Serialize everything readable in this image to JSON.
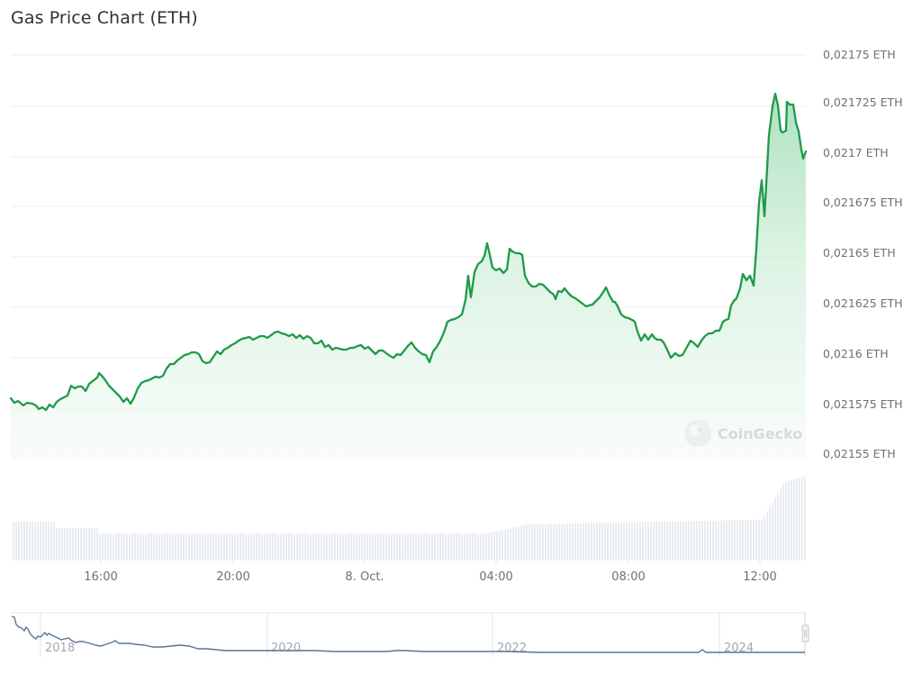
{
  "header": {
    "title": "Gas Price Chart (ETH)"
  },
  "watermark": {
    "text": "CoinGecko"
  },
  "colors": {
    "line": "#1e9a48",
    "fill_top": "#b9e6c8",
    "fill_bottom": "#f6fcf8",
    "grid": "#ecedef",
    "volume": "#e9edf2",
    "navigator_line": "#5c7591"
  },
  "chart_data": {
    "type": "line",
    "title": "Gas Price Chart (ETH)",
    "xlabel": "",
    "ylabel": "ETH",
    "ylim": [
      0.02155,
      0.02175
    ],
    "y_ticks": [
      "0,02175 ETH",
      "0,021725 ETH",
      "0,0217 ETH",
      "0,021675 ETH",
      "0,02165 ETH",
      "0,021625 ETH",
      "0,0216 ETH",
      "0,021575 ETH",
      "0,02155 ETH"
    ],
    "x_ticks": [
      "16:00",
      "20:00",
      "8. Oct.",
      "04:00",
      "08:00",
      "12:00"
    ],
    "grid": true,
    "legend": "none",
    "series": [
      {
        "name": "Gas Price (ETH)",
        "approx_points": [
          [
            "13:20",
            0.021578
          ],
          [
            "14:00",
            0.021574
          ],
          [
            "15:00",
            0.02158
          ],
          [
            "16:00",
            0.021585
          ],
          [
            "16:30",
            0.021589
          ],
          [
            "17:00",
            0.021576
          ],
          [
            "17:30",
            0.021584
          ],
          [
            "18:00",
            0.021588
          ],
          [
            "19:00",
            0.021595
          ],
          [
            "20:00",
            0.0216
          ],
          [
            "21:00",
            0.021605
          ],
          [
            "22:00",
            0.021606
          ],
          [
            "23:00",
            0.021603
          ],
          [
            "00:00",
            0.021601
          ],
          [
            "01:00",
            0.0216
          ],
          [
            "02:00",
            0.0216
          ],
          [
            "02:20",
            0.021597
          ],
          [
            "03:00",
            0.02162
          ],
          [
            "03:40",
            0.021635
          ],
          [
            "04:00",
            0.021646
          ],
          [
            "04:30",
            0.021653
          ],
          [
            "05:00",
            0.021645
          ],
          [
            "06:00",
            0.02163
          ],
          [
            "07:00",
            0.021628
          ],
          [
            "07:30",
            0.02163
          ],
          [
            "08:00",
            0.021622
          ],
          [
            "08:30",
            0.02161
          ],
          [
            "09:30",
            0.021599
          ],
          [
            "10:30",
            0.02161
          ],
          [
            "11:00",
            0.021625
          ],
          [
            "11:30",
            0.021637
          ],
          [
            "12:00",
            0.02166
          ],
          [
            "12:20",
            0.021715
          ],
          [
            "12:40",
            0.021728
          ],
          [
            "13:00",
            0.021722
          ],
          [
            "13:20",
            0.0217
          ]
        ]
      }
    ],
    "volume": {
      "type": "bar",
      "trend": "flat then rising sharply after 12:00"
    },
    "navigator": {
      "type": "line",
      "x_ticks": [
        "2018",
        "2020",
        "2022",
        "2024"
      ],
      "trend": "declining from high in 2017 to flat low from 2020 onward"
    }
  }
}
